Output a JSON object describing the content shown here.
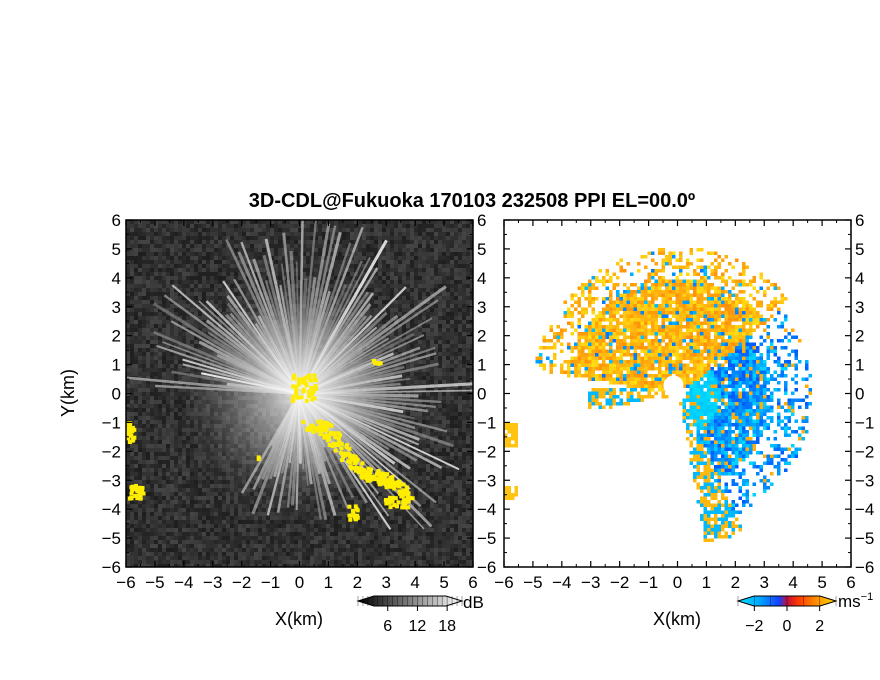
{
  "chart_data": [
    {
      "type": "heatmap",
      "panel": "left",
      "quantity": "received signal intensity (SNR)",
      "title": "3D-CDL@Fukuoka 170103 232508 PPI EL=00.0º",
      "xlabel": "X(km)",
      "ylabel": "Y(km)",
      "xlim": [
        -6,
        6
      ],
      "ylim": [
        -6,
        6
      ],
      "xticks": [
        "−6",
        "−5",
        "−4",
        "−3",
        "−2",
        "−1",
        "0",
        "1",
        "2",
        "3",
        "4",
        "5",
        "6"
      ],
      "yticks": [
        "6",
        "5",
        "4",
        "3",
        "2",
        "1",
        "0",
        "−1",
        "−2",
        "−3",
        "−4",
        "−5",
        "−6"
      ],
      "colormap": "gray",
      "colorbar": {
        "ticks": [
          "6",
          "12",
          "18"
        ],
        "unit": "dB",
        "range": [
          0,
          21
        ]
      },
      "features": {
        "background": "#2f2f2f",
        "highlight_color": "#ffee00",
        "yellow_patches_km": [
          {
            "x": -5.9,
            "y": -1.3
          },
          {
            "x": -5.7,
            "y": -3.4
          },
          {
            "x": 0.1,
            "y": 0.3
          },
          {
            "x": 2.6,
            "y": 1.1
          },
          {
            "x": 0.6,
            "y": -1.8
          },
          {
            "x": 1.5,
            "y": -2.9
          },
          {
            "x": 2.2,
            "y": -3.8
          },
          {
            "x": 3.3,
            "y": -3.7
          }
        ]
      }
    },
    {
      "type": "heatmap",
      "panel": "right",
      "quantity": "radial velocity",
      "xlabel": "X(km)",
      "xlim": [
        -6,
        6
      ],
      "ylim": [
        -6,
        6
      ],
      "xticks": [
        "−6",
        "−5",
        "−4",
        "−3",
        "−2",
        "−1",
        "0",
        "1",
        "2",
        "3",
        "4",
        "5",
        "6"
      ],
      "yticks": [
        "6",
        "5",
        "4",
        "3",
        "2",
        "1",
        "0",
        "−1",
        "−2",
        "−3",
        "−4",
        "−5",
        "−6"
      ],
      "colormap": "diverging cyan-blue / red-orange-yellow",
      "colorbar": {
        "ticks": [
          "−2",
          "0",
          "2"
        ],
        "unit": "ms",
        "unit_exp": "−1",
        "range": [
          -3,
          3
        ]
      },
      "features": {
        "positive_color": "#ff7b00",
        "negative_color": "#1560ff",
        "near_zero_color": "#00d0ff"
      }
    }
  ]
}
